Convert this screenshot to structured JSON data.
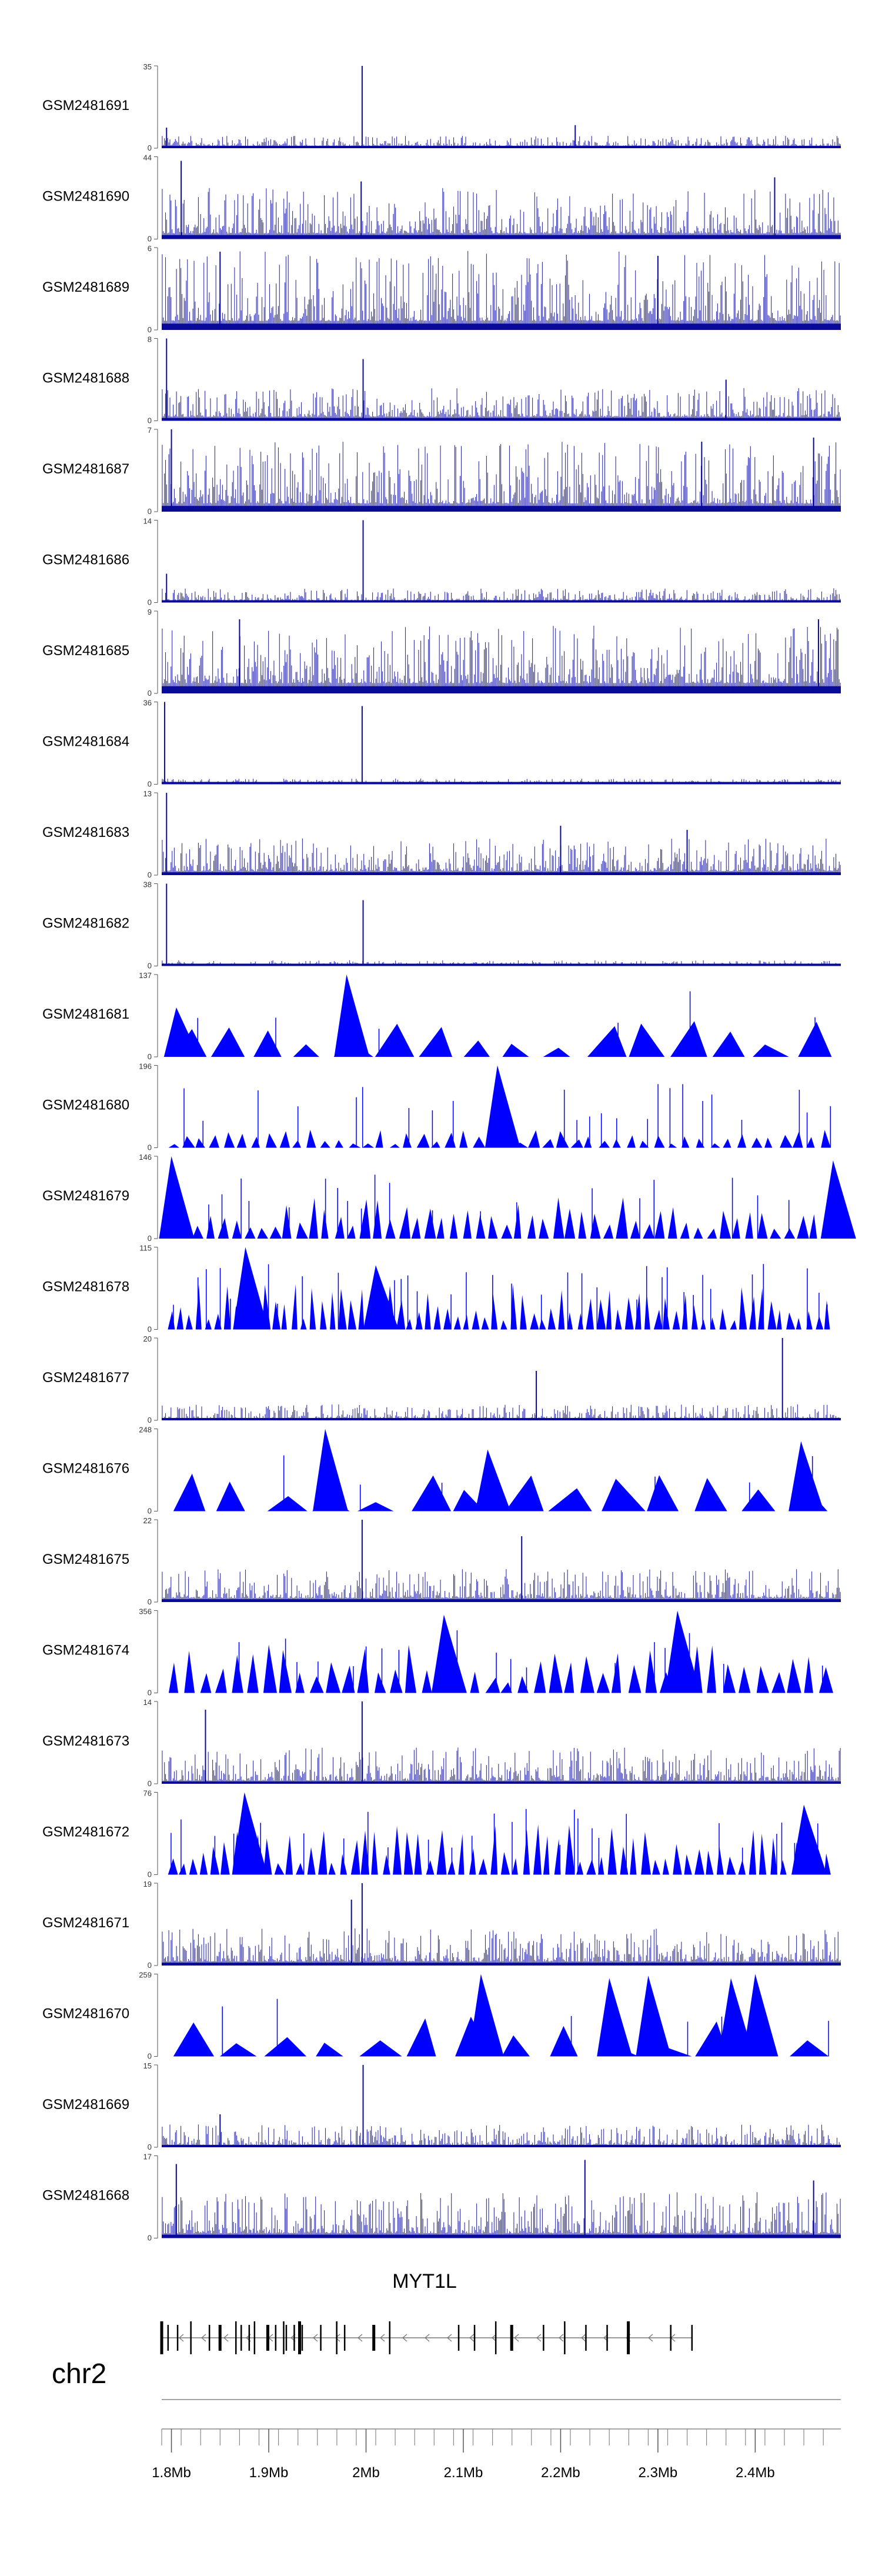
{
  "chart_data": {
    "type": "area",
    "title": "",
    "chromosome": "chr2",
    "gene": {
      "name": "MYT1L",
      "start_mb": 1.79,
      "end_mb": 2.335,
      "strand": "-"
    },
    "xlim": [
      1.79,
      2.488
    ],
    "x_ticks": [
      {
        "value": 1.8,
        "label": "1.8Mb"
      },
      {
        "value": 1.9,
        "label": "1.9Mb"
      },
      {
        "value": 2.0,
        "label": "2Mb"
      },
      {
        "value": 2.1,
        "label": "2.1Mb"
      },
      {
        "value": 2.2,
        "label": "2.2Mb"
      },
      {
        "value": 2.3,
        "label": "2.3Mb"
      },
      {
        "value": 2.4,
        "label": "2.4Mb"
      }
    ],
    "tracks": [
      {
        "name": "GSM2481691",
        "ymax": 35,
        "ymax_label": "35",
        "style": "dense",
        "base": 0.06,
        "noise": 0.12,
        "peaks": [
          [
            1.795,
            0.25
          ],
          [
            1.996,
            1.0
          ],
          [
            2.215,
            0.28
          ]
        ]
      },
      {
        "name": "GSM2481690",
        "ymax": 44,
        "ymax_label": "44",
        "style": "dense",
        "base": 0.14,
        "noise": 0.55,
        "peaks": [
          [
            1.81,
            0.95
          ],
          [
            1.995,
            0.7
          ],
          [
            2.42,
            0.75
          ]
        ]
      },
      {
        "name": "GSM2481689",
        "ymax": 6,
        "ymax_label": "6",
        "style": "dense",
        "base": 0.22,
        "noise": 0.85,
        "peaks": [
          [
            1.85,
            0.95
          ],
          [
            2.3,
            0.9
          ]
        ]
      },
      {
        "name": "GSM2481688",
        "ymax": 8,
        "ymax_label": "8",
        "style": "dense",
        "base": 0.1,
        "noise": 0.35,
        "peaks": [
          [
            1.795,
            1.0
          ],
          [
            1.997,
            0.75
          ],
          [
            2.37,
            0.5
          ]
        ]
      },
      {
        "name": "GSM2481687",
        "ymax": 7,
        "ymax_label": "7",
        "style": "dense",
        "base": 0.2,
        "noise": 0.75,
        "peaks": [
          [
            1.8,
            1.0
          ],
          [
            2.345,
            0.85
          ],
          [
            2.46,
            0.9
          ]
        ]
      },
      {
        "name": "GSM2481686",
        "ymax": 14,
        "ymax_label": "14",
        "style": "dense",
        "base": 0.05,
        "noise": 0.15,
        "peaks": [
          [
            1.795,
            0.35
          ],
          [
            1.997,
            1.0
          ]
        ]
      },
      {
        "name": "GSM2481685",
        "ymax": 9,
        "ymax_label": "9",
        "style": "dense",
        "base": 0.25,
        "noise": 0.7,
        "peaks": [
          [
            1.87,
            0.9
          ],
          [
            2.465,
            0.9
          ]
        ]
      },
      {
        "name": "GSM2481684",
        "ymax": 36,
        "ymax_label": "36",
        "style": "dense",
        "base": 0.02,
        "noise": 0.06,
        "peaks": [
          [
            1.793,
            1.0
          ],
          [
            1.996,
            0.95
          ]
        ]
      },
      {
        "name": "GSM2481683",
        "ymax": 13,
        "ymax_label": "13",
        "style": "dense",
        "base": 0.1,
        "noise": 0.4,
        "peaks": [
          [
            1.795,
            1.0
          ],
          [
            2.2,
            0.6
          ],
          [
            2.33,
            0.55
          ]
        ]
      },
      {
        "name": "GSM2481682",
        "ymax": 38,
        "ymax_label": "38",
        "style": "dense",
        "base": 0.02,
        "noise": 0.06,
        "peaks": [
          [
            1.795,
            1.0
          ],
          [
            1.997,
            0.8
          ]
        ]
      },
      {
        "name": "GSM2481681",
        "ymax": 137,
        "ymax_label": "137",
        "style": "sparse",
        "n": 16,
        "maxh": 0.45,
        "big": [
          [
            1.805,
            0.6
          ],
          [
            1.98,
            1.0
          ]
        ]
      },
      {
        "name": "GSM2481680",
        "ymax": 196,
        "ymax_label": "196",
        "style": "sparse",
        "n": 48,
        "maxh": 0.22,
        "big": [
          [
            2.135,
            1.0
          ]
        ]
      },
      {
        "name": "GSM2481679",
        "ymax": 146,
        "ymax_label": "146",
        "style": "sparse",
        "n": 52,
        "maxh": 0.5,
        "big": [
          [
            1.8,
            1.0
          ],
          [
            2.48,
            0.95
          ]
        ]
      },
      {
        "name": "GSM2481678",
        "ymax": 115,
        "ymax_label": "115",
        "style": "sparse",
        "n": 70,
        "maxh": 0.55,
        "big": [
          [
            1.876,
            1.0
          ],
          [
            2.01,
            0.78
          ]
        ]
      },
      {
        "name": "GSM2481677",
        "ymax": 20,
        "ymax_label": "20",
        "style": "dense",
        "base": 0.03,
        "noise": 0.18,
        "peaks": [
          [
            2.175,
            0.6
          ],
          [
            2.428,
            1.0
          ]
        ]
      },
      {
        "name": "GSM2481676",
        "ymax": 248,
        "ymax_label": "248",
        "style": "sparse",
        "n": 14,
        "maxh": 0.5,
        "big": [
          [
            1.958,
            1.0
          ],
          [
            2.125,
            0.75
          ],
          [
            2.447,
            0.85
          ]
        ]
      },
      {
        "name": "GSM2481675",
        "ymax": 22,
        "ymax_label": "22",
        "style": "dense",
        "base": 0.1,
        "noise": 0.35,
        "peaks": [
          [
            1.996,
            1.0
          ],
          [
            2.16,
            0.8
          ]
        ]
      },
      {
        "name": "GSM2481674",
        "ymax": 356,
        "ymax_label": "356",
        "style": "sparse",
        "n": 42,
        "maxh": 0.6,
        "big": [
          [
            2.08,
            0.95
          ],
          [
            2.32,
            1.0
          ]
        ]
      },
      {
        "name": "GSM2481673",
        "ymax": 14,
        "ymax_label": "14",
        "style": "dense",
        "base": 0.08,
        "noise": 0.4,
        "peaks": [
          [
            1.996,
            1.0
          ],
          [
            1.835,
            0.9
          ]
        ]
      },
      {
        "name": "GSM2481672",
        "ymax": 76,
        "ymax_label": "76",
        "style": "sparse",
        "n": 62,
        "maxh": 0.62,
        "big": [
          [
            1.875,
            1.0
          ],
          [
            2.45,
            0.85
          ]
        ]
      },
      {
        "name": "GSM2481671",
        "ymax": 19,
        "ymax_label": "19",
        "style": "dense",
        "base": 0.1,
        "noise": 0.4,
        "peaks": [
          [
            1.996,
            1.0
          ],
          [
            1.985,
            0.8
          ]
        ]
      },
      {
        "name": "GSM2481670",
        "ymax": 259,
        "ymax_label": "259",
        "style": "sparse",
        "n": 14,
        "maxh": 0.5,
        "big": [
          [
            2.118,
            1.0
          ],
          [
            2.25,
            0.95
          ],
          [
            2.29,
            0.98
          ],
          [
            2.375,
            0.95
          ],
          [
            2.4,
            1.0
          ]
        ]
      },
      {
        "name": "GSM2481669",
        "ymax": 15,
        "ymax_label": "15",
        "style": "dense",
        "base": 0.06,
        "noise": 0.25,
        "peaks": [
          [
            1.997,
            1.0
          ],
          [
            1.85,
            0.4
          ]
        ]
      },
      {
        "name": "GSM2481668",
        "ymax": 17,
        "ymax_label": "17",
        "style": "dense",
        "base": 0.12,
        "noise": 0.5,
        "peaks": [
          [
            1.805,
            0.9
          ],
          [
            2.225,
            0.95
          ],
          [
            2.46,
            0.7
          ]
        ]
      }
    ]
  },
  "colors": {
    "signal": "#0000ff",
    "signal_dense": "#0a0a9a",
    "axis": "#555555",
    "gene": "#000000"
  }
}
